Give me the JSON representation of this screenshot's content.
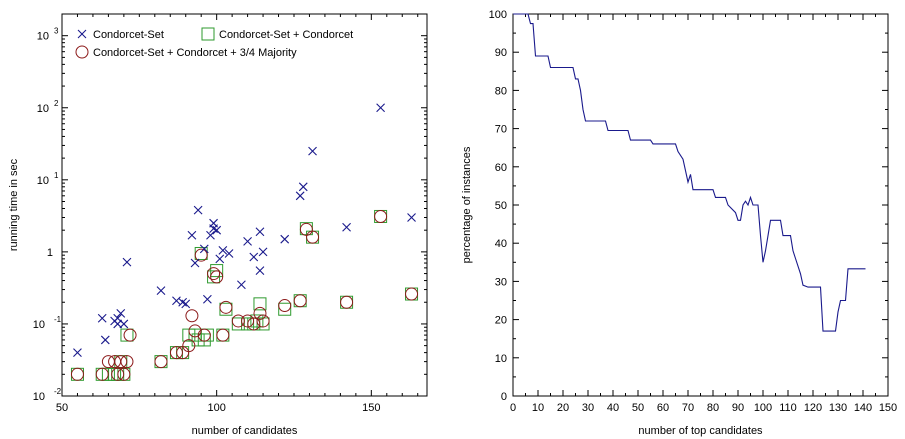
{
  "chart_data": [
    {
      "type": "scatter",
      "xlabel": "number of candidates",
      "ylabel": "running time in sec",
      "xlim": [
        50,
        168
      ],
      "ylim": [
        0.01,
        2000
      ],
      "yscale": "log",
      "xticks": [
        50,
        100,
        150
      ],
      "yticks": [
        {
          "value": 0.01,
          "base": "10",
          "exp": "-2"
        },
        {
          "value": 0.1,
          "base": "10",
          "exp": "-1"
        },
        {
          "value": 1,
          "base": "1",
          "exp": ""
        },
        {
          "value": 10,
          "base": "10",
          "exp": "1"
        },
        {
          "value": 100,
          "base": "10",
          "exp": "2"
        },
        {
          "value": 1000,
          "base": "10",
          "exp": "3"
        }
      ],
      "legend_position": "top-left",
      "series": [
        {
          "name": "Condorcet-Set",
          "marker": "cross",
          "color": "#1a1a8c",
          "points": [
            [
              55,
              0.04
            ],
            [
              63,
              0.12
            ],
            [
              64,
              0.06
            ],
            [
              67,
              0.11
            ],
            [
              68,
              0.1
            ],
            [
              68,
              0.12
            ],
            [
              69,
              0.14
            ],
            [
              70,
              0.1
            ],
            [
              71,
              0.72
            ],
            [
              82,
              0.29
            ],
            [
              87,
              0.21
            ],
            [
              89,
              0.2
            ],
            [
              90,
              0.19
            ],
            [
              92,
              1.7
            ],
            [
              93,
              0.7
            ],
            [
              94,
              3.8
            ],
            [
              96,
              1.1
            ],
            [
              97,
              0.22
            ],
            [
              98,
              1.7
            ],
            [
              99,
              2.1
            ],
            [
              99,
              2.5
            ],
            [
              100,
              2.0
            ],
            [
              101,
              0.8
            ],
            [
              102,
              1.05
            ],
            [
              104,
              0.95
            ],
            [
              108,
              0.35
            ],
            [
              110,
              1.4
            ],
            [
              112,
              0.85
            ],
            [
              114,
              1.9
            ],
            [
              114,
              0.55
            ],
            [
              115,
              1.0
            ],
            [
              122,
              1.5
            ],
            [
              127,
              6.0
            ],
            [
              128,
              8.0
            ],
            [
              131,
              25
            ],
            [
              142,
              2.2
            ],
            [
              153,
              100
            ],
            [
              163,
              3.0
            ]
          ]
        },
        {
          "name": "Condorcet-Set + Condorcet",
          "marker": "square",
          "color": "#2e9a2e",
          "points": [
            [
              55,
              0.02
            ],
            [
              63,
              0.02
            ],
            [
              65,
              0.02
            ],
            [
              67,
              0.02
            ],
            [
              68,
              0.02
            ],
            [
              69,
              0.03
            ],
            [
              70,
              0.02
            ],
            [
              71,
              0.07
            ],
            [
              82,
              0.03
            ],
            [
              87,
              0.04
            ],
            [
              89,
              0.04
            ],
            [
              91,
              0.07
            ],
            [
              93,
              0.07
            ],
            [
              94,
              0.06
            ],
            [
              95,
              0.95
            ],
            [
              96,
              0.06
            ],
            [
              97,
              0.07
            ],
            [
              99,
              0.45
            ],
            [
              100,
              0.55
            ],
            [
              102,
              0.07
            ],
            [
              103,
              0.16
            ],
            [
              107,
              0.1
            ],
            [
              110,
              0.1
            ],
            [
              112,
              0.1
            ],
            [
              113,
              0.11
            ],
            [
              114,
              0.19
            ],
            [
              115,
              0.1
            ],
            [
              122,
              0.16
            ],
            [
              127,
              0.21
            ],
            [
              129,
              2.1
            ],
            [
              131,
              1.6
            ],
            [
              142,
              0.2
            ],
            [
              153,
              3.1
            ],
            [
              163,
              0.26
            ]
          ]
        },
        {
          "name": "Condorcet-Set + Condorcet + 3/4 Majority",
          "marker": "circle",
          "color": "#8c1a1a",
          "points": [
            [
              55,
              0.02
            ],
            [
              63,
              0.02
            ],
            [
              65,
              0.03
            ],
            [
              67,
              0.03
            ],
            [
              68,
              0.02
            ],
            [
              69,
              0.03
            ],
            [
              70,
              0.02
            ],
            [
              71,
              0.03
            ],
            [
              72,
              0.07
            ],
            [
              82,
              0.03
            ],
            [
              87,
              0.04
            ],
            [
              89,
              0.04
            ],
            [
              91,
              0.05
            ],
            [
              92,
              0.13
            ],
            [
              93,
              0.08
            ],
            [
              95,
              0.9
            ],
            [
              96,
              0.07
            ],
            [
              99,
              0.5
            ],
            [
              100,
              0.45
            ],
            [
              102,
              0.07
            ],
            [
              103,
              0.17
            ],
            [
              107,
              0.11
            ],
            [
              110,
              0.11
            ],
            [
              112,
              0.1
            ],
            [
              114,
              0.14
            ],
            [
              115,
              0.11
            ],
            [
              122,
              0.18
            ],
            [
              127,
              0.21
            ],
            [
              129,
              2.05
            ],
            [
              131,
              1.6
            ],
            [
              142,
              0.2
            ],
            [
              153,
              3.1
            ],
            [
              163,
              0.26
            ]
          ]
        }
      ]
    },
    {
      "type": "line",
      "xlabel": "number of top candidates",
      "ylabel": "percentage of instances",
      "xlim": [
        0,
        150
      ],
      "ylim": [
        0,
        100
      ],
      "xticks": [
        0,
        10,
        20,
        30,
        40,
        50,
        60,
        70,
        80,
        90,
        100,
        110,
        120,
        130,
        140,
        150
      ],
      "yticks": [
        0,
        10,
        20,
        30,
        40,
        50,
        60,
        70,
        80,
        90,
        100
      ],
      "series": [
        {
          "color": "#1a1a8c",
          "points": [
            [
              0,
              100
            ],
            [
              1,
              100
            ],
            [
              6,
              100
            ],
            [
              7,
              97.5
            ],
            [
              8,
              97.5
            ],
            [
              9,
              89
            ],
            [
              14,
              89
            ],
            [
              15,
              86
            ],
            [
              24,
              86
            ],
            [
              25,
              83
            ],
            [
              26,
              83
            ],
            [
              27,
              80
            ],
            [
              28,
              75
            ],
            [
              29,
              72
            ],
            [
              37,
              72
            ],
            [
              38,
              69.5
            ],
            [
              46,
              69.5
            ],
            [
              47,
              67
            ],
            [
              55,
              67
            ],
            [
              56,
              66
            ],
            [
              65,
              66
            ],
            [
              66,
              64
            ],
            [
              68,
              62
            ],
            [
              69,
              59
            ],
            [
              70,
              56
            ],
            [
              71,
              58
            ],
            [
              72,
              54
            ],
            [
              80,
              54
            ],
            [
              81,
              52
            ],
            [
              85,
              52
            ],
            [
              86,
              50
            ],
            [
              89,
              48
            ],
            [
              90,
              46
            ],
            [
              91,
              46
            ],
            [
              92,
              50
            ],
            [
              93,
              51
            ],
            [
              94,
              50
            ],
            [
              95,
              52
            ],
            [
              96,
              50
            ],
            [
              98,
              50
            ],
            [
              99,
              42
            ],
            [
              100,
              35
            ],
            [
              101,
              38
            ],
            [
              102,
              42
            ],
            [
              103,
              46
            ],
            [
              107,
              46
            ],
            [
              108,
              42
            ],
            [
              111,
              42
            ],
            [
              112,
              38
            ],
            [
              113,
              36
            ],
            [
              115,
              32
            ],
            [
              116,
              29
            ],
            [
              118,
              28.5
            ],
            [
              123,
              28.5
            ],
            [
              124,
              17
            ],
            [
              129,
              17
            ],
            [
              130,
              22
            ],
            [
              131,
              25
            ],
            [
              133,
              25
            ],
            [
              134,
              33.3
            ],
            [
              141,
              33.3
            ]
          ]
        }
      ]
    }
  ]
}
